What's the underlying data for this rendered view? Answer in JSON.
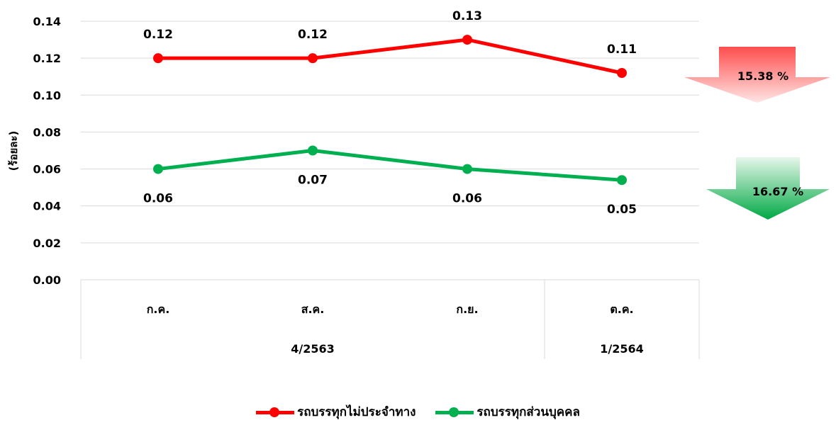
{
  "chart_data": {
    "type": "line",
    "title": "",
    "ylabel": "(ร้อยละ)",
    "xlabel": "",
    "ylim": [
      0,
      0.14
    ],
    "yticks": [
      "0.00",
      "0.02",
      "0.04",
      "0.06",
      "0.08",
      "0.10",
      "0.12",
      "0.14"
    ],
    "categories": [
      "ก.ค.",
      "ส.ค.",
      "ก.ย.",
      "ต.ค."
    ],
    "groups": [
      {
        "label": "4/2563",
        "span": 3
      },
      {
        "label": "1/2564",
        "span": 1
      }
    ],
    "series": [
      {
        "name": "รถบรรทุกไม่ประจำทาง",
        "color": "#ff0000",
        "values": [
          0.12,
          0.12,
          0.13,
          0.112
        ],
        "labels": [
          "0.12",
          "0.12",
          "0.13",
          "0.11"
        ]
      },
      {
        "name": "รถบรรทุกส่วนบุคคล",
        "color": "#00b050",
        "values": [
          0.06,
          0.07,
          0.06,
          0.054
        ],
        "labels": [
          "0.06",
          "0.07",
          "0.06",
          "0.05"
        ]
      }
    ],
    "annotations": [
      {
        "text": "15.38 %",
        "series": 0,
        "direction": "down",
        "color": "#ff6b6b"
      },
      {
        "text": "16.67 %",
        "series": 1,
        "direction": "down",
        "color": "#00b050"
      }
    ],
    "grid": true,
    "legend": "bottom"
  }
}
